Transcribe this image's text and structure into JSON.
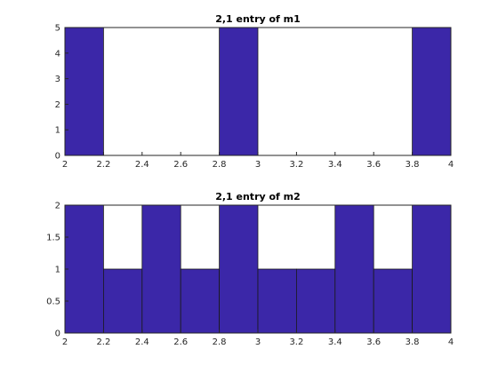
{
  "colors": {
    "bar_fill": "#3b27a8",
    "axis": "#262626"
  },
  "chart_data": [
    {
      "type": "bar",
      "title": "2,1 entry of m1",
      "xlabel": "",
      "ylabel": "",
      "bin_edges": [
        2.0,
        2.2,
        2.4,
        2.6,
        2.8,
        3.0,
        3.2,
        3.4,
        3.6,
        3.8,
        4.0
      ],
      "values": [
        5,
        0,
        0,
        0,
        5,
        0,
        0,
        0,
        0,
        5
      ],
      "xlim": [
        2,
        4
      ],
      "ylim": [
        0,
        5
      ],
      "xticks": [
        "2",
        "2.2",
        "2.4",
        "2.6",
        "2.8",
        "3",
        "3.2",
        "3.4",
        "3.6",
        "3.8",
        "4"
      ],
      "yticks": [
        "0",
        "1",
        "2",
        "3",
        "4",
        "5"
      ],
      "grid": false
    },
    {
      "type": "bar",
      "title": "2,1 entry of m2",
      "xlabel": "",
      "ylabel": "",
      "bin_edges": [
        2.0,
        2.2,
        2.4,
        2.6,
        2.8,
        3.0,
        3.2,
        3.4,
        3.6,
        3.8,
        4.0
      ],
      "values": [
        2,
        1,
        2,
        1,
        2,
        1,
        1,
        2,
        1,
        2
      ],
      "xlim": [
        2,
        4
      ],
      "ylim": [
        0,
        2
      ],
      "xticks": [
        "2",
        "2.2",
        "2.4",
        "2.6",
        "2.8",
        "3",
        "3.2",
        "3.4",
        "3.6",
        "3.8",
        "4"
      ],
      "yticks": [
        "0",
        "0.5",
        "1",
        "1.5",
        "2"
      ],
      "grid": false
    }
  ]
}
